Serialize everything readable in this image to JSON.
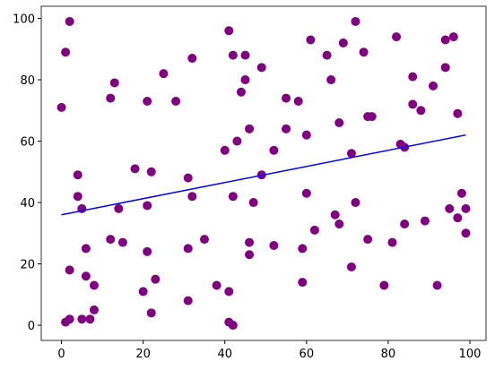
{
  "chart_data": {
    "type": "scatter",
    "xlim": [
      -4.95,
      103.95
    ],
    "ylim": [
      -4.95,
      103.95
    ],
    "xticks": [
      0,
      20,
      40,
      60,
      80,
      100
    ],
    "yticks": [
      0,
      20,
      40,
      60,
      80,
      100
    ],
    "series": [
      {
        "type": "scatter",
        "color": "#800080",
        "x": [
          0,
          1,
          2,
          1,
          2,
          2,
          4,
          4,
          5,
          5,
          6,
          6,
          7,
          8,
          8,
          12,
          13,
          12,
          14,
          15,
          18,
          20,
          21,
          21,
          21,
          22,
          22,
          23,
          25,
          28,
          31,
          31,
          31,
          32,
          32,
          35,
          38,
          40,
          41,
          41,
          41,
          42,
          42,
          42,
          43,
          44,
          45,
          45,
          46,
          46,
          46,
          47,
          49,
          49,
          52,
          52,
          55,
          55,
          58,
          59,
          59,
          60,
          60,
          61,
          62,
          65,
          66,
          67,
          68,
          68,
          69,
          71,
          71,
          72,
          72,
          74,
          75,
          76,
          75,
          79,
          81,
          82,
          83,
          84,
          84,
          86,
          86,
          88,
          89,
          91,
          92,
          94,
          94,
          95,
          96,
          97,
          97,
          98,
          99,
          99
        ],
        "values": [
          71,
          89,
          99,
          1,
          2,
          18,
          49,
          42,
          38,
          2,
          25,
          16,
          2,
          13,
          5,
          74,
          79,
          28,
          38,
          27,
          51,
          11,
          73,
          39,
          24,
          50,
          4,
          15,
          82,
          73,
          48,
          25,
          8,
          87,
          42,
          28,
          13,
          57,
          96,
          11,
          1,
          0,
          88,
          42,
          60,
          76,
          88,
          80,
          64,
          27,
          23,
          40,
          84,
          49,
          57,
          26,
          74,
          64,
          73,
          25,
          14,
          62,
          43,
          93,
          31,
          88,
          80,
          36,
          33,
          66,
          92,
          56,
          19,
          99,
          40,
          89,
          68,
          68,
          28,
          13,
          27,
          94,
          59,
          58,
          33,
          81,
          72,
          70,
          34,
          78,
          13,
          93,
          84,
          38,
          94,
          69,
          35,
          43,
          38,
          30
        ]
      },
      {
        "type": "line",
        "color": "#0000ff",
        "x": [
          0,
          99
        ],
        "values": [
          36,
          62
        ]
      }
    ]
  }
}
